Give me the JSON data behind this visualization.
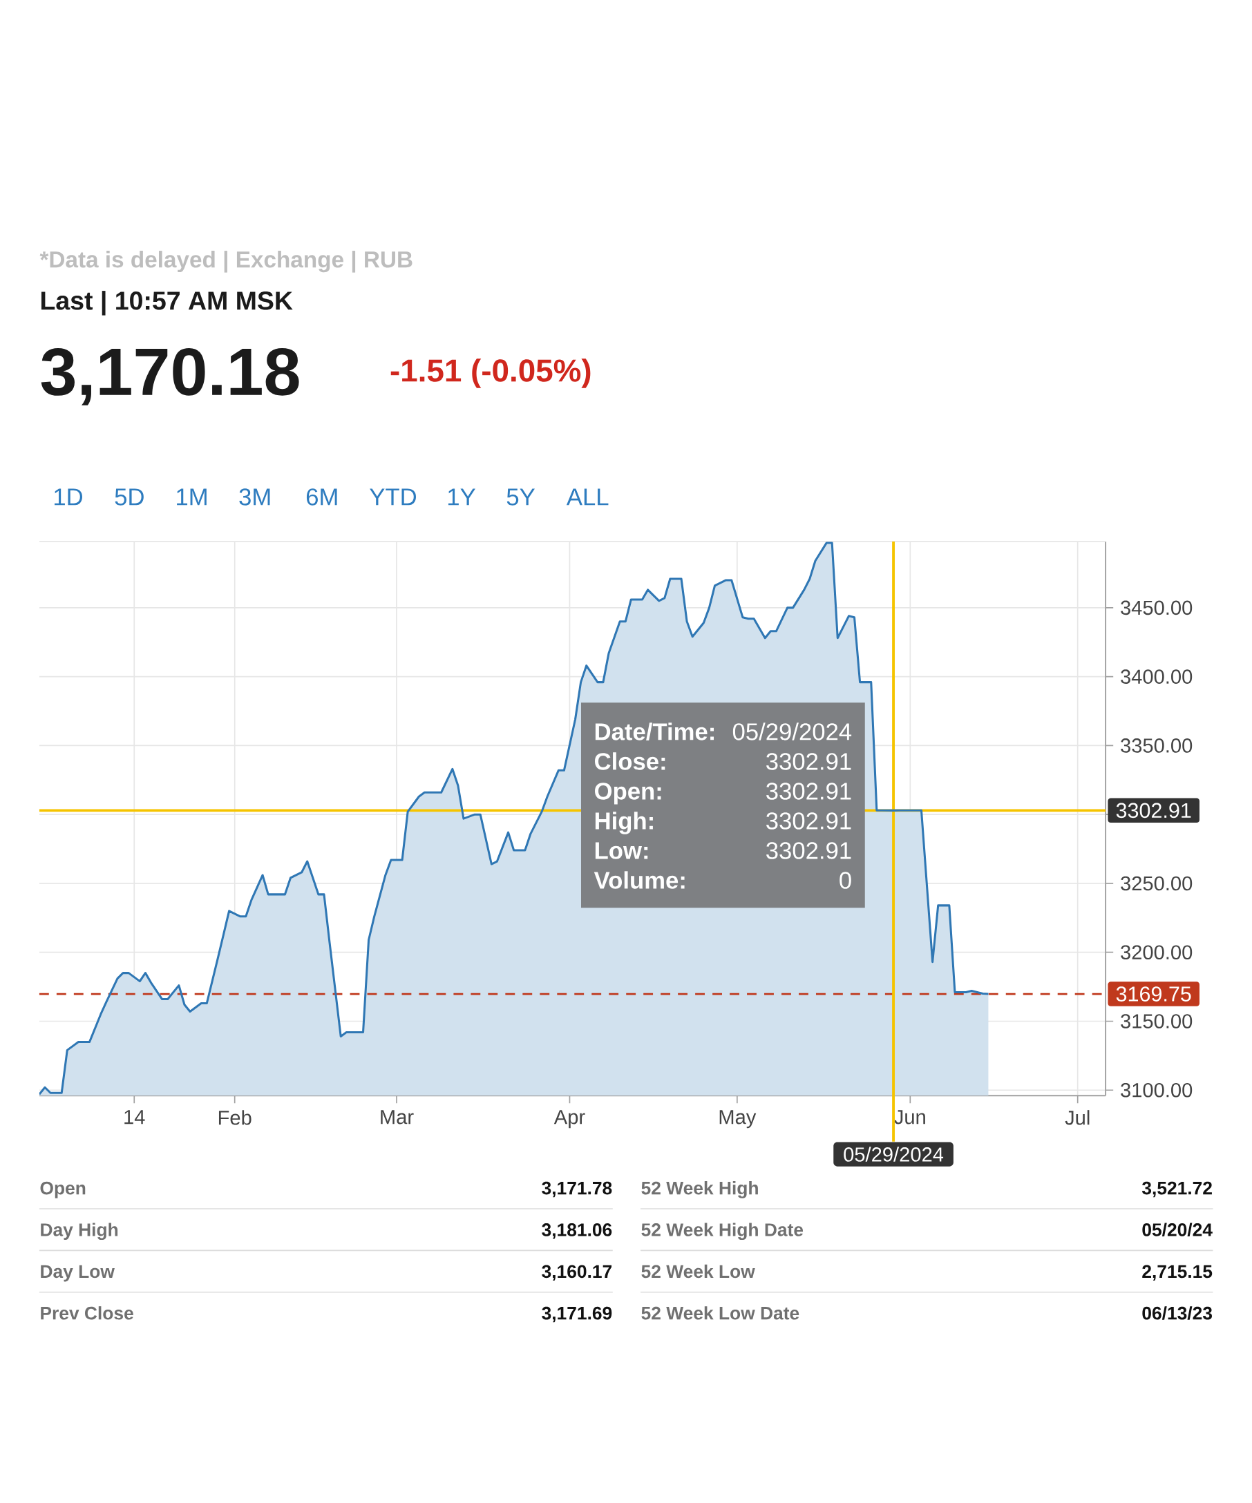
{
  "chart_data": {
    "type": "area",
    "color": "#2f77b4",
    "x": [
      "2023-12-28",
      "2023-12-29",
      "2023-12-30",
      "2024-01-01",
      "2024-01-02",
      "2024-01-04",
      "2024-01-06",
      "2024-01-08",
      "2024-01-09",
      "2024-01-11",
      "2024-01-12",
      "2024-01-13",
      "2024-01-15",
      "2024-01-16",
      "2024-01-17",
      "2024-01-19",
      "2024-01-20",
      "2024-01-22",
      "2024-01-23",
      "2024-01-24",
      "2024-01-26",
      "2024-01-27",
      "2024-01-29",
      "2024-01-30",
      "2024-01-31",
      "2024-02-02",
      "2024-02-03",
      "2024-02-04",
      "2024-02-06",
      "2024-02-07",
      "2024-02-09",
      "2024-02-10",
      "2024-02-11",
      "2024-02-13",
      "2024-02-14",
      "2024-02-16",
      "2024-02-17",
      "2024-02-18",
      "2024-02-20",
      "2024-02-21",
      "2024-02-22",
      "2024-02-24",
      "2024-02-25",
      "2024-02-26",
      "2024-02-28",
      "2024-02-29",
      "2024-03-02",
      "2024-03-03",
      "2024-03-05",
      "2024-03-06",
      "2024-03-08",
      "2024-03-09",
      "2024-03-11",
      "2024-03-12",
      "2024-03-13",
      "2024-03-15",
      "2024-03-16",
      "2024-03-18",
      "2024-03-19",
      "2024-03-21",
      "2024-03-22",
      "2024-03-24",
      "2024-03-25",
      "2024-03-27",
      "2024-03-28",
      "2024-03-30",
      "2024-03-31",
      "2024-04-02",
      "2024-04-03",
      "2024-04-04",
      "2024-04-06",
      "2024-04-07",
      "2024-04-08",
      "2024-04-10",
      "2024-04-11",
      "2024-04-12",
      "2024-04-14",
      "2024-04-15",
      "2024-04-17",
      "2024-04-18",
      "2024-04-19",
      "2024-04-21",
      "2024-04-22",
      "2024-04-23",
      "2024-04-25",
      "2024-04-26",
      "2024-04-27",
      "2024-04-29",
      "2024-04-30",
      "2024-05-02",
      "2024-05-03",
      "2024-05-04",
      "2024-05-06",
      "2024-05-07",
      "2024-05-08",
      "2024-05-10",
      "2024-05-11",
      "2024-05-13",
      "2024-05-14",
      "2024-05-15",
      "2024-05-17",
      "2024-05-18",
      "2024-05-19",
      "2024-05-21",
      "2024-05-22",
      "2024-05-23",
      "2024-05-25",
      "2024-05-26",
      "2024-05-27",
      "2024-05-29",
      "2024-05-30",
      "2024-05-31",
      "2024-06-02",
      "2024-06-03",
      "2024-06-05",
      "2024-06-06",
      "2024-06-08",
      "2024-06-09",
      "2024-06-11",
      "2024-06-12",
      "2024-06-14",
      "2024-06-15"
    ],
    "values": [
      3097,
      3102,
      3098,
      3098,
      3129,
      3135,
      3135,
      3155,
      3164,
      3181,
      3185,
      3185,
      3179,
      3185,
      3178,
      3166,
      3166,
      3176,
      3162,
      3157,
      3163,
      3163,
      3196,
      3213,
      3230,
      3226,
      3226,
      3238,
      3256,
      3242,
      3242,
      3242,
      3254,
      3258,
      3266,
      3242,
      3242,
      3207,
      3139,
      3142,
      3142,
      3142,
      3209,
      3226,
      3256,
      3267,
      3267,
      3302,
      3313,
      3316,
      3316,
      3316,
      3333,
      3321,
      3297,
      3300,
      3300,
      3264,
      3266,
      3287,
      3274,
      3274,
      3286,
      3302,
      3313,
      3332,
      3332,
      3369,
      3396,
      3408,
      3396,
      3396,
      3417,
      3440,
      3440,
      3456,
      3456,
      3463,
      3455,
      3457,
      3471,
      3471,
      3440,
      3429,
      3439,
      3450,
      3466,
      3470,
      3470,
      3443,
      3442,
      3442,
      3428,
      3433,
      3433,
      3450,
      3450,
      3463,
      3471,
      3484,
      3497,
      3497,
      3428,
      3444,
      3443,
      3396,
      3396,
      3303,
      3303,
      3302.91,
      3303,
      3303,
      3303,
      3303,
      3193,
      3234,
      3234,
      3171,
      3171,
      3172,
      3170,
      3169.75
    ],
    "xlim": [
      "2023-12-28",
      "2024-07-06"
    ],
    "ylim": [
      3096,
      3498
    ],
    "xticks": [
      {
        "value": "2024-01-14",
        "label": "14"
      },
      {
        "value": "2024-02-01",
        "label": "Feb"
      },
      {
        "value": "2024-03-01",
        "label": "Mar"
      },
      {
        "value": "2024-04-01",
        "label": "Apr"
      },
      {
        "value": "2024-05-01",
        "label": "May"
      },
      {
        "value": "2024-06-01",
        "label": "Jun"
      },
      {
        "value": "2024-07-01",
        "label": "Jul"
      }
    ],
    "yticks": [
      {
        "value": 3100,
        "label": "3100.00"
      },
      {
        "value": 3150,
        "label": "3150.00"
      },
      {
        "value": 3200,
        "label": "3200.00"
      },
      {
        "value": 3250,
        "label": "3250.00"
      },
      {
        "value": 3300,
        "label": null
      },
      {
        "value": 3350,
        "label": "3350.00"
      },
      {
        "value": 3400,
        "label": "3400.00"
      },
      {
        "value": 3450,
        "label": "3450.00"
      }
    ],
    "grid": true,
    "ref_lines": [
      {
        "axis": "y",
        "value": 3169.75,
        "label": "3169.75",
        "color": "#c0391d",
        "line_style": "dashed"
      },
      {
        "axis": "y",
        "value": 3302.91,
        "label": "3302.91",
        "color": "#f5c400",
        "line_style": "solid"
      },
      {
        "axis": "x",
        "value": "2024-05-29",
        "label": "05/29/2024",
        "color": "#f5c400",
        "line_style": "solid"
      }
    ],
    "annotations": [
      "*Data is delayed | Exchange | RUB",
      "Last | 10:57 AM MSK",
      "3,170.18",
      "-1.51 (-0.05%)",
      "1D",
      "5D",
      "1M",
      "3M",
      "6M",
      "YTD",
      "1Y",
      "5Y",
      "ALL",
      "Date/Time:",
      "05/29/2024",
      "Close:",
      "3302.91",
      "Open:",
      "3302.91",
      "High:",
      "3302.91",
      "Low:",
      "3302.91",
      "Volume:",
      "0",
      "Open",
      "3,171.78",
      "Day High",
      "3,181.06",
      "Day Low",
      "3,160.17",
      "Prev Close",
      "3,171.69",
      "52 Week High",
      "3,521.72",
      "52 Week High Date",
      "05/20/24",
      "52 Week Low",
      "2,715.15",
      "52 Week Low Date",
      "06/13/23"
    ]
  }
}
